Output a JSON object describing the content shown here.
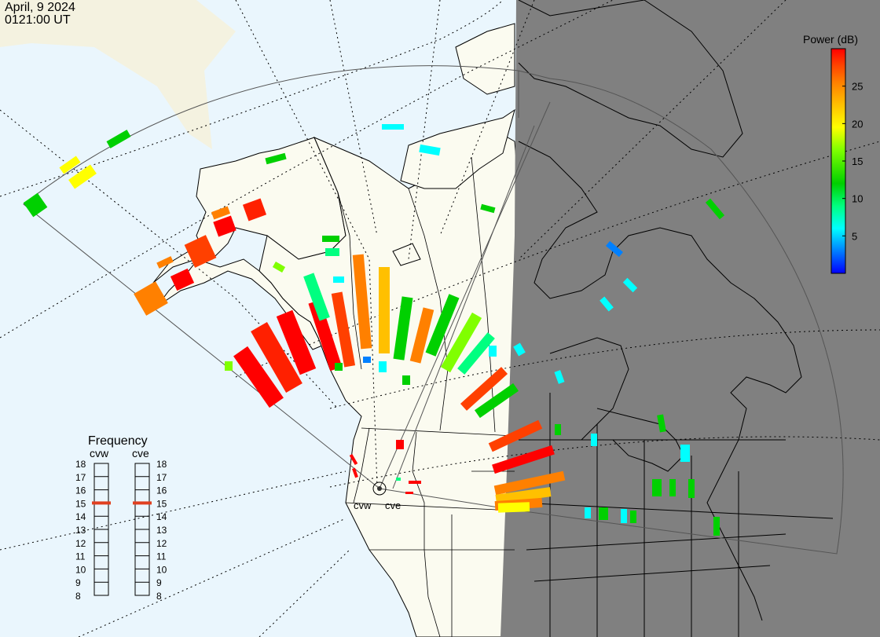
{
  "header": {
    "date": "April, 9 2024",
    "time": "0121:00 UT"
  },
  "colorbar": {
    "title": "Power (dB)",
    "ticks": [
      "5",
      "10",
      "15",
      "20",
      "25"
    ],
    "tick_values": [
      5,
      10,
      15,
      20,
      25
    ],
    "range": [
      0,
      30
    ],
    "colors": [
      "#0000ff",
      "#0080ff",
      "#00ffff",
      "#00ff80",
      "#00d000",
      "#80ff00",
      "#ffff00",
      "#ffc000",
      "#ff8000",
      "#ff4000",
      "#ff0000"
    ]
  },
  "frequency_panel": {
    "title": "Frequency",
    "radars": [
      {
        "name": "cvw",
        "frequency": 15
      },
      {
        "name": "cve",
        "frequency": 15
      }
    ],
    "scale": [
      "18",
      "17",
      "16",
      "15",
      "14",
      "13",
      "12",
      "11",
      "10",
      "9",
      "8"
    ],
    "marker_color": "#e04020"
  },
  "map": {
    "radar_site_labels": [
      "cvw",
      "cve"
    ],
    "night_color": "#808080",
    "land_color": "#fbfbf0",
    "ocean_color": "#eaf6fd"
  }
}
